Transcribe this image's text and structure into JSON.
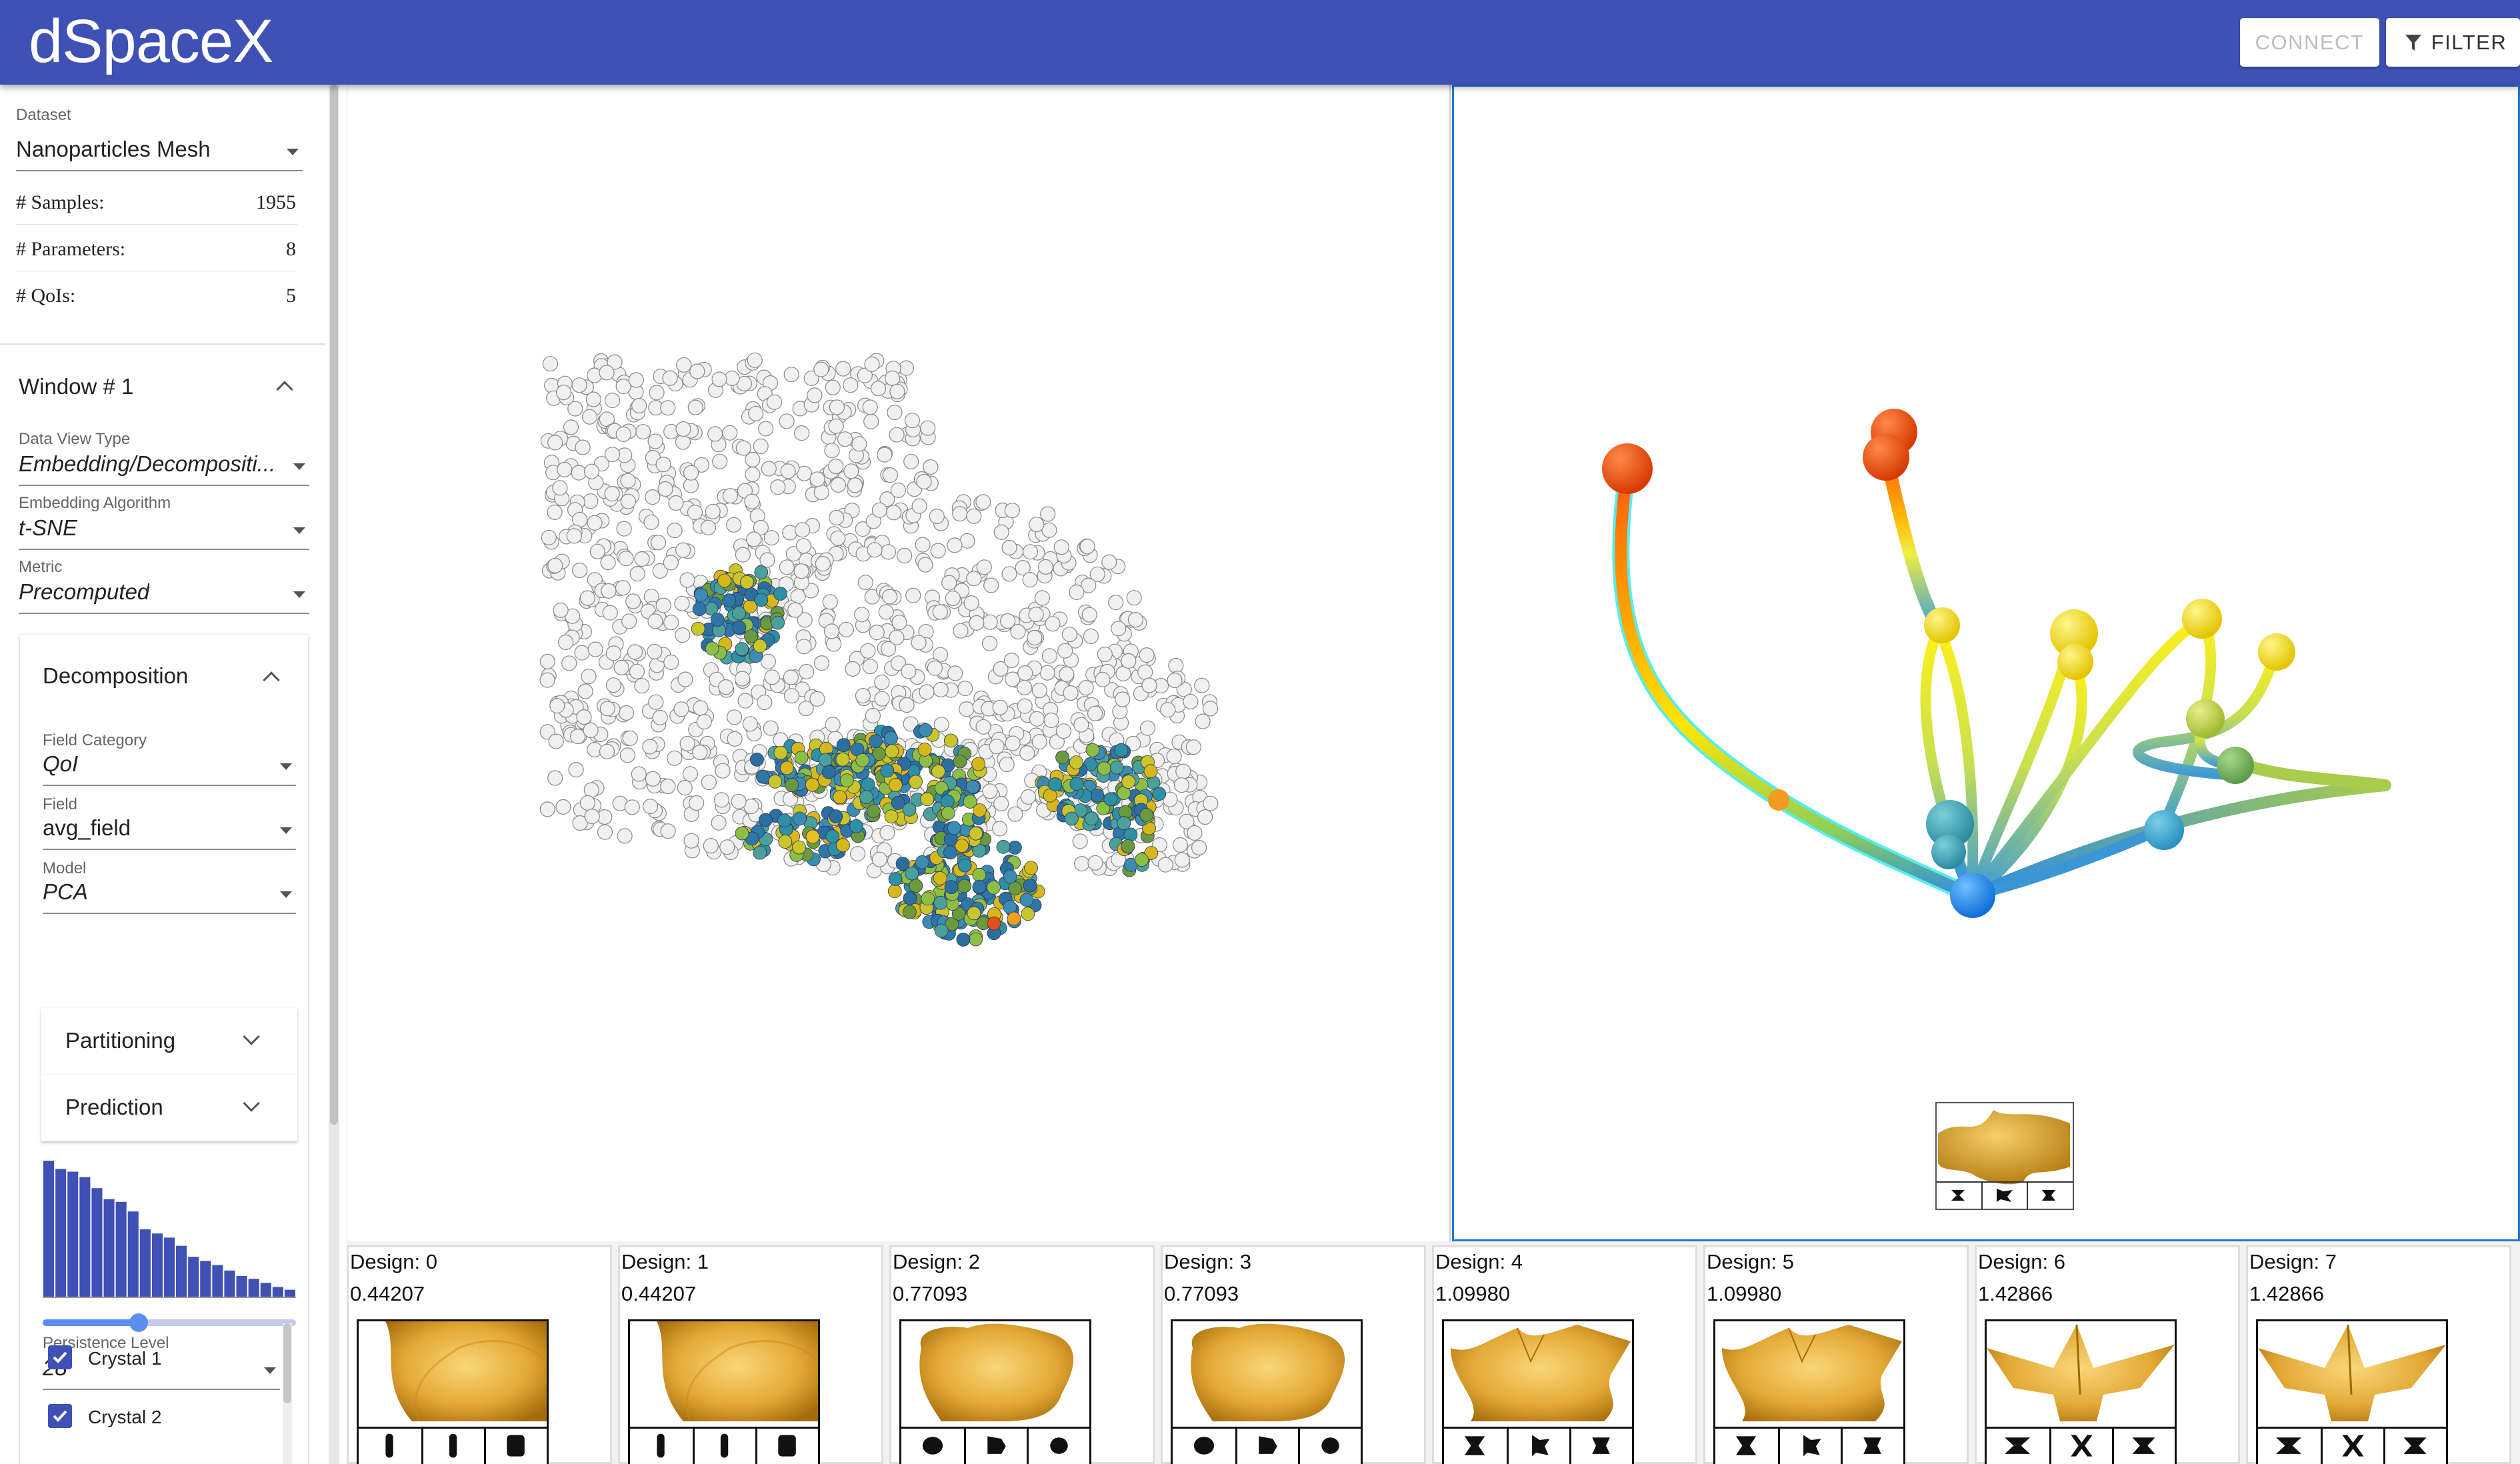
{
  "header": {
    "title": "dSpaceX",
    "connect_label": "CONNECT",
    "filter_label": "FILTER",
    "brand_color": "#3f51b5"
  },
  "dataset": {
    "label": "Dataset",
    "value": "Nanoparticles Mesh",
    "stats": [
      {
        "label": "# Samples:",
        "value": "1955"
      },
      {
        "label": "# Parameters:",
        "value": "8"
      },
      {
        "label": "# QoIs:",
        "value": "5"
      }
    ]
  },
  "window": {
    "title": "Window # 1",
    "data_view_type": {
      "label": "Data View Type",
      "value": "Embedding/Decompositi..."
    },
    "embedding_algorithm": {
      "label": "Embedding Algorithm",
      "value": "t-SNE"
    },
    "metric": {
      "label": "Metric",
      "value": "Precomputed"
    }
  },
  "decomposition": {
    "title": "Decomposition",
    "field_category": {
      "label": "Field Category",
      "value": "QoI"
    },
    "field": {
      "label": "Field",
      "value": "avg_field"
    },
    "model": {
      "label": "Model",
      "value": "PCA"
    },
    "partitioning_label": "Partitioning",
    "prediction_label": "Prediction",
    "persistence_histogram": [
      1.0,
      0.94,
      0.92,
      0.88,
      0.8,
      0.72,
      0.7,
      0.63,
      0.5,
      0.47,
      0.44,
      0.38,
      0.3,
      0.27,
      0.24,
      0.2,
      0.16,
      0.14,
      0.11,
      0.08,
      0.06
    ],
    "histogram_color": "#3f51b5",
    "persistence_slider_fraction": 0.38,
    "persistence_level": {
      "label": "Persistence Level",
      "value": "28"
    },
    "crystals": [
      {
        "label": "Crystal 1",
        "checked": true
      },
      {
        "label": "Crystal 2",
        "checked": true
      }
    ]
  },
  "graph_view": {
    "border_color": "#1e78d2"
  },
  "designs": [
    {
      "name": "Design: 0",
      "value": "0.44207"
    },
    {
      "name": "Design: 1",
      "value": "0.44207"
    },
    {
      "name": "Design: 2",
      "value": "0.77093"
    },
    {
      "name": "Design: 3",
      "value": "0.77093"
    },
    {
      "name": "Design: 4",
      "value": "1.09980"
    },
    {
      "name": "Design: 5",
      "value": "1.09980"
    },
    {
      "name": "Design: 6",
      "value": "1.42866"
    },
    {
      "name": "Design: 7",
      "value": "1.42866"
    }
  ]
}
